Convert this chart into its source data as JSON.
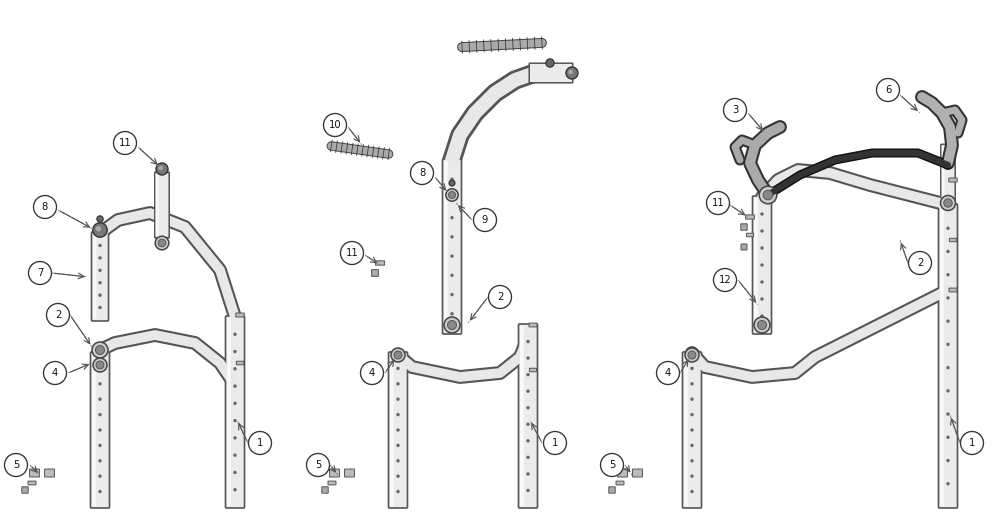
{
  "bg": "#ffffff",
  "fw": 10.0,
  "fh": 5.25,
  "dpi": 100,
  "tube_fc": "#ebebeb",
  "tube_ec": "#555555",
  "pipe_oc": "#555555",
  "pipe_ic": "#e8e8e8",
  "conn_fc": "#cccccc",
  "conn_ec": "#444444",
  "cap_fc": "#888888",
  "grip_oc": "#555555",
  "grip_ic": "#aaaaaa",
  "lbl_ec": "#333333",
  "lbl_tc": "#111111",
  "arr_c": "#555555",
  "dash_c": "#888888"
}
